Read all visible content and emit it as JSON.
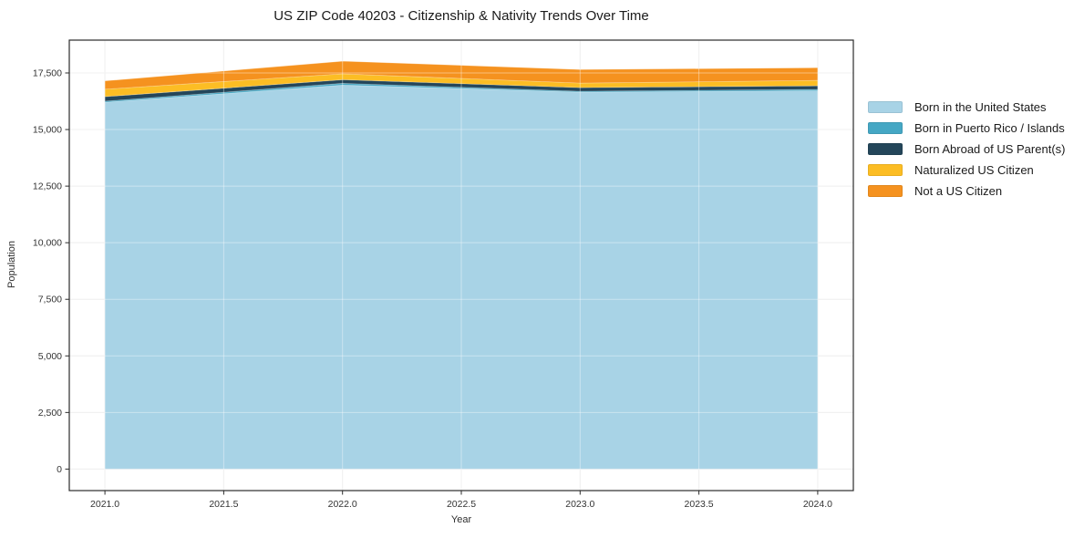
{
  "chart_data": {
    "type": "area",
    "stacked": true,
    "title": "US ZIP Code 40203 - Citizenship & Nativity Trends Over Time",
    "xlabel": "Year",
    "ylabel": "Population",
    "x": [
      2021,
      2022,
      2023,
      2024
    ],
    "series": [
      {
        "name": "Born in the United States",
        "color": "#a8d3e6",
        "values": [
          16200,
          16960,
          16650,
          16710
        ]
      },
      {
        "name": "Born in Puerto Rico / Islands",
        "color": "#45a7c4",
        "values": [
          50,
          80,
          40,
          60
        ]
      },
      {
        "name": "Born Abroad of US Parent(s)",
        "color": "#24465a",
        "values": [
          200,
          160,
          160,
          160
        ]
      },
      {
        "name": "Naturalized US Citizen",
        "color": "#fcbd24",
        "values": [
          330,
          260,
          200,
          240
        ]
      },
      {
        "name": "Not a US Citizen",
        "color": "#f5921f",
        "values": [
          370,
          560,
          600,
          560
        ]
      }
    ],
    "totals": [
      17150,
      18020,
      17650,
      17730
    ],
    "xticks": [
      2021.0,
      2021.5,
      2022.0,
      2022.5,
      2023.0,
      2023.5,
      2024.0
    ],
    "yticks": [
      0,
      2500,
      5000,
      7500,
      10000,
      12500,
      15000,
      17500
    ],
    "xlim": [
      2020.85,
      2024.15
    ],
    "ylim": [
      -950,
      18950
    ],
    "grid": true,
    "legend_position": "right",
    "colors": {
      "spine": "#2b2b2b",
      "grid_under": "#e7e7e7",
      "grid_over": "rgba(255,255,255,0.4)",
      "tick_label": "#333333"
    }
  }
}
